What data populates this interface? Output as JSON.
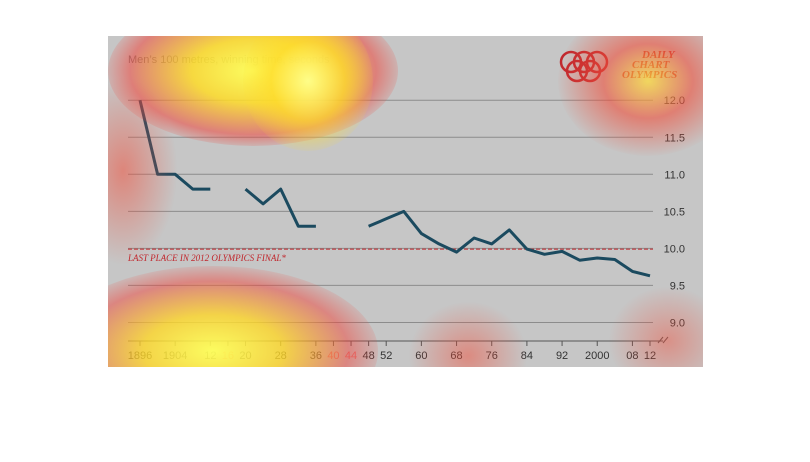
{
  "chart_data": {
    "type": "line",
    "title": "Men’s 100 metres, winning time, seconds",
    "brand": [
      "DAILY",
      "CHART",
      "OLYMPICS"
    ],
    "ylim": [
      8.75,
      12.3
    ],
    "yticks": [
      9.0,
      9.5,
      10.0,
      10.5,
      11.0,
      11.5,
      12.0
    ],
    "ytick_labels": [
      "9.0",
      "9.5",
      "10.0",
      "10.5",
      "11.0",
      "11.5",
      "12.0"
    ],
    "x_ticks": [
      {
        "year": 1896,
        "label": "1896",
        "faint": false
      },
      {
        "year": 1904,
        "label": "1904",
        "faint": false
      },
      {
        "year": 1912,
        "label": "12",
        "faint": false
      },
      {
        "year": 1916,
        "label": "16",
        "faint": true
      },
      {
        "year": 1920,
        "label": "20",
        "faint": false
      },
      {
        "year": 1928,
        "label": "28",
        "faint": false
      },
      {
        "year": 1936,
        "label": "36",
        "faint": false
      },
      {
        "year": 1940,
        "label": "40",
        "faint": true
      },
      {
        "year": 1944,
        "label": "44",
        "faint": true
      },
      {
        "year": 1948,
        "label": "48",
        "faint": false
      },
      {
        "year": 1952,
        "label": "52",
        "faint": false
      },
      {
        "year": 1960,
        "label": "60",
        "faint": false
      },
      {
        "year": 1968,
        "label": "68",
        "faint": false
      },
      {
        "year": 1976,
        "label": "76",
        "faint": false
      },
      {
        "year": 1984,
        "label": "84",
        "faint": false
      },
      {
        "year": 1992,
        "label": "92",
        "faint": false
      },
      {
        "year": 2000,
        "label": "2000",
        "faint": false
      },
      {
        "year": 2008,
        "label": "08",
        "faint": false
      },
      {
        "year": 2012,
        "label": "12",
        "faint": false
      }
    ],
    "reference_line": {
      "value": 9.99,
      "label": "LAST PLACE IN 2012 OLYMPICS FINAL*"
    },
    "segments": [
      {
        "x": [
          1896,
          1900,
          1904,
          1908,
          1912
        ],
        "y": [
          12.0,
          11.0,
          11.0,
          10.8,
          10.8
        ]
      },
      {
        "x": [
          1920,
          1924,
          1928,
          1932,
          1936
        ],
        "y": [
          10.8,
          10.6,
          10.8,
          10.3,
          10.3
        ]
      },
      {
        "x": [
          1948,
          1952,
          1956,
          1960,
          1964,
          1968,
          1972,
          1976,
          1980,
          1984,
          1988,
          1992,
          1996,
          2000,
          2004,
          2008,
          2012
        ],
        "y": [
          10.3,
          10.4,
          10.5,
          10.2,
          10.06,
          9.95,
          10.14,
          10.06,
          10.25,
          9.99,
          9.92,
          9.96,
          9.84,
          9.87,
          9.85,
          9.69,
          9.63
        ]
      }
    ],
    "grid": true,
    "colors": {
      "line": "#1b4a5f",
      "reference": "#c0272d",
      "background": "#c6c6c6",
      "grid": "#8c8c8c"
    }
  }
}
